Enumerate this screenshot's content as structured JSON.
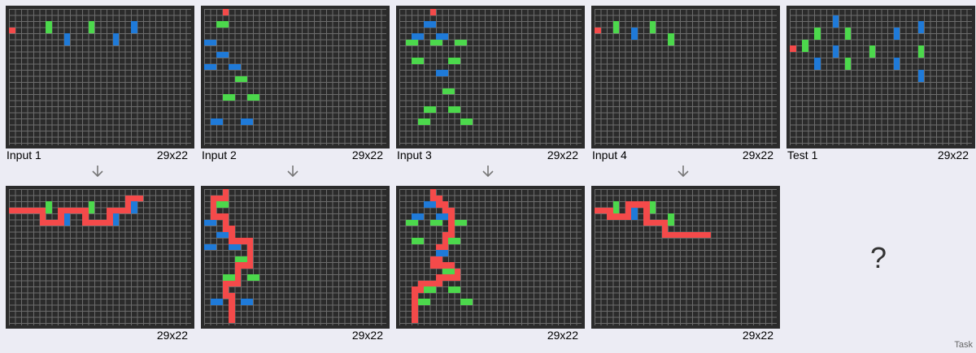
{
  "task_label": "Task",
  "unknown_label": "?",
  "colors": {
    "red": "#f44a4a",
    "green": "#4cd84c",
    "blue": "#1f7ad8",
    "bg": "#2b2b2b",
    "grid_line": "#6c6c6c"
  },
  "pairs": [
    {
      "label": "Input 1",
      "in_size": "29x22",
      "out_size": "29x22"
    },
    {
      "label": "Input 2",
      "in_size": "29x22",
      "out_size": "29x22"
    },
    {
      "label": "Input 3",
      "in_size": "29x22",
      "out_size": "29x22"
    },
    {
      "label": "Input 4",
      "in_size": "29x22",
      "out_size": "29x22"
    }
  ],
  "test": {
    "label": "Test 1",
    "size": "29x22"
  },
  "grids": {
    "in1": {
      "red": [
        [
          0,
          3
        ]
      ],
      "green": [
        [
          6,
          2
        ],
        [
          6,
          3
        ],
        [
          13,
          2
        ],
        [
          13,
          3
        ]
      ],
      "blue": [
        [
          9,
          4
        ],
        [
          9,
          5
        ],
        [
          17,
          4
        ],
        [
          17,
          5
        ],
        [
          20,
          2
        ],
        [
          20,
          3
        ]
      ]
    },
    "out1": {
      "red": [
        [
          0,
          3
        ],
        [
          1,
          3
        ],
        [
          2,
          3
        ],
        [
          3,
          3
        ],
        [
          4,
          3
        ],
        [
          5,
          3
        ],
        [
          5,
          4
        ],
        [
          5,
          5
        ],
        [
          6,
          5
        ],
        [
          7,
          5
        ],
        [
          8,
          5
        ],
        [
          8,
          4
        ],
        [
          8,
          3
        ],
        [
          9,
          3
        ],
        [
          10,
          3
        ],
        [
          11,
          3
        ],
        [
          12,
          3
        ],
        [
          12,
          4
        ],
        [
          12,
          5
        ],
        [
          13,
          5
        ],
        [
          14,
          5
        ],
        [
          15,
          5
        ],
        [
          16,
          5
        ],
        [
          16,
          4
        ],
        [
          16,
          3
        ],
        [
          17,
          3
        ],
        [
          18,
          3
        ],
        [
          19,
          3
        ],
        [
          19,
          2
        ],
        [
          19,
          1
        ],
        [
          20,
          1
        ],
        [
          21,
          1
        ]
      ],
      "green": [
        [
          6,
          2
        ],
        [
          6,
          3
        ],
        [
          13,
          2
        ],
        [
          13,
          3
        ]
      ],
      "blue": [
        [
          9,
          4
        ],
        [
          9,
          5
        ],
        [
          17,
          4
        ],
        [
          17,
          5
        ],
        [
          20,
          2
        ],
        [
          20,
          3
        ]
      ]
    },
    "in2": {
      "red": [
        [
          3,
          0
        ]
      ],
      "green": [
        [
          2,
          2
        ],
        [
          3,
          2
        ],
        [
          5,
          11
        ],
        [
          6,
          11
        ],
        [
          3,
          14
        ],
        [
          4,
          14
        ],
        [
          7,
          14
        ],
        [
          8,
          14
        ]
      ],
      "blue": [
        [
          0,
          5
        ],
        [
          1,
          5
        ],
        [
          2,
          7
        ],
        [
          3,
          7
        ],
        [
          0,
          9
        ],
        [
          1,
          9
        ],
        [
          4,
          9
        ],
        [
          5,
          9
        ],
        [
          1,
          18
        ],
        [
          2,
          18
        ],
        [
          6,
          18
        ],
        [
          7,
          18
        ]
      ]
    },
    "out2": {
      "red": [
        [
          3,
          0
        ],
        [
          3,
          1
        ],
        [
          2,
          1
        ],
        [
          1,
          1
        ],
        [
          1,
          2
        ],
        [
          1,
          3
        ],
        [
          1,
          4
        ],
        [
          2,
          4
        ],
        [
          3,
          4
        ],
        [
          3,
          5
        ],
        [
          3,
          6
        ],
        [
          4,
          6
        ],
        [
          4,
          7
        ],
        [
          4,
          8
        ],
        [
          5,
          8
        ],
        [
          6,
          8
        ],
        [
          7,
          8
        ],
        [
          7,
          9
        ],
        [
          7,
          10
        ],
        [
          7,
          11
        ],
        [
          7,
          12
        ],
        [
          6,
          12
        ],
        [
          5,
          12
        ],
        [
          5,
          13
        ],
        [
          5,
          14
        ],
        [
          5,
          15
        ],
        [
          4,
          15
        ],
        [
          3,
          15
        ],
        [
          3,
          16
        ],
        [
          3,
          17
        ],
        [
          4,
          17
        ],
        [
          4,
          18
        ],
        [
          4,
          19
        ],
        [
          4,
          20
        ],
        [
          4,
          21
        ]
      ],
      "green": [
        [
          2,
          2
        ],
        [
          3,
          2
        ],
        [
          5,
          11
        ],
        [
          6,
          11
        ],
        [
          3,
          14
        ],
        [
          4,
          14
        ],
        [
          7,
          14
        ],
        [
          8,
          14
        ]
      ],
      "blue": [
        [
          0,
          5
        ],
        [
          1,
          5
        ],
        [
          2,
          7
        ],
        [
          3,
          7
        ],
        [
          0,
          9
        ],
        [
          1,
          9
        ],
        [
          4,
          9
        ],
        [
          5,
          9
        ],
        [
          1,
          18
        ],
        [
          2,
          18
        ],
        [
          6,
          18
        ],
        [
          7,
          18
        ]
      ]
    },
    "in3": {
      "red": [
        [
          5,
          0
        ]
      ],
      "green": [
        [
          1,
          5
        ],
        [
          2,
          5
        ],
        [
          5,
          5
        ],
        [
          6,
          5
        ],
        [
          9,
          5
        ],
        [
          10,
          5
        ],
        [
          2,
          8
        ],
        [
          3,
          8
        ],
        [
          8,
          8
        ],
        [
          9,
          8
        ],
        [
          7,
          13
        ],
        [
          8,
          13
        ],
        [
          4,
          16
        ],
        [
          5,
          16
        ],
        [
          8,
          16
        ],
        [
          9,
          16
        ],
        [
          3,
          18
        ],
        [
          4,
          18
        ],
        [
          10,
          18
        ],
        [
          11,
          18
        ]
      ],
      "blue": [
        [
          4,
          2
        ],
        [
          5,
          2
        ],
        [
          2,
          4
        ],
        [
          3,
          4
        ],
        [
          6,
          4
        ],
        [
          7,
          4
        ],
        [
          6,
          10
        ],
        [
          7,
          10
        ]
      ]
    },
    "out3": {
      "red": [
        [
          5,
          0
        ],
        [
          5,
          1
        ],
        [
          6,
          1
        ],
        [
          6,
          2
        ],
        [
          7,
          2
        ],
        [
          7,
          3
        ],
        [
          8,
          3
        ],
        [
          8,
          4
        ],
        [
          8,
          5
        ],
        [
          8,
          6
        ],
        [
          8,
          7
        ],
        [
          7,
          7
        ],
        [
          7,
          8
        ],
        [
          7,
          9
        ],
        [
          6,
          9
        ],
        [
          6,
          10
        ],
        [
          6,
          11
        ],
        [
          5,
          11
        ],
        [
          5,
          12
        ],
        [
          6,
          12
        ],
        [
          7,
          12
        ],
        [
          8,
          12
        ],
        [
          8,
          13
        ],
        [
          9,
          13
        ],
        [
          9,
          14
        ],
        [
          8,
          14
        ],
        [
          7,
          14
        ],
        [
          6,
          14
        ],
        [
          6,
          15
        ],
        [
          5,
          15
        ],
        [
          4,
          15
        ],
        [
          3,
          15
        ],
        [
          3,
          16
        ],
        [
          2,
          16
        ],
        [
          2,
          17
        ],
        [
          2,
          18
        ],
        [
          2,
          19
        ],
        [
          2,
          20
        ],
        [
          2,
          21
        ]
      ],
      "green": [
        [
          1,
          5
        ],
        [
          2,
          5
        ],
        [
          5,
          5
        ],
        [
          6,
          5
        ],
        [
          9,
          5
        ],
        [
          10,
          5
        ],
        [
          2,
          8
        ],
        [
          3,
          8
        ],
        [
          8,
          8
        ],
        [
          9,
          8
        ],
        [
          7,
          13
        ],
        [
          8,
          13
        ],
        [
          4,
          16
        ],
        [
          5,
          16
        ],
        [
          8,
          16
        ],
        [
          9,
          16
        ],
        [
          3,
          18
        ],
        [
          4,
          18
        ],
        [
          10,
          18
        ],
        [
          11,
          18
        ]
      ],
      "blue": [
        [
          4,
          2
        ],
        [
          5,
          2
        ],
        [
          2,
          4
        ],
        [
          3,
          4
        ],
        [
          6,
          4
        ],
        [
          7,
          4
        ],
        [
          6,
          10
        ],
        [
          7,
          10
        ]
      ]
    },
    "in4": {
      "red": [
        [
          0,
          3
        ]
      ],
      "green": [
        [
          3,
          2
        ],
        [
          3,
          3
        ],
        [
          9,
          2
        ],
        [
          9,
          3
        ],
        [
          12,
          4
        ],
        [
          12,
          5
        ]
      ],
      "blue": [
        [
          6,
          3
        ],
        [
          6,
          4
        ]
      ]
    },
    "out4": {
      "red": [
        [
          0,
          3
        ],
        [
          1,
          3
        ],
        [
          2,
          3
        ],
        [
          2,
          4
        ],
        [
          3,
          4
        ],
        [
          4,
          4
        ],
        [
          5,
          4
        ],
        [
          5,
          3
        ],
        [
          5,
          2
        ],
        [
          6,
          2
        ],
        [
          7,
          2
        ],
        [
          8,
          2
        ],
        [
          8,
          3
        ],
        [
          8,
          4
        ],
        [
          8,
          5
        ],
        [
          9,
          5
        ],
        [
          10,
          5
        ],
        [
          11,
          5
        ],
        [
          11,
          6
        ],
        [
          11,
          7
        ],
        [
          12,
          7
        ],
        [
          13,
          7
        ],
        [
          14,
          7
        ],
        [
          15,
          7
        ],
        [
          16,
          7
        ],
        [
          17,
          7
        ],
        [
          18,
          7
        ]
      ],
      "green": [
        [
          3,
          2
        ],
        [
          3,
          3
        ],
        [
          9,
          2
        ],
        [
          9,
          3
        ],
        [
          12,
          4
        ],
        [
          12,
          5
        ]
      ],
      "blue": [
        [
          6,
          3
        ],
        [
          6,
          4
        ]
      ]
    },
    "test": {
      "red": [
        [
          0,
          6
        ]
      ],
      "green": [
        [
          2,
          5
        ],
        [
          2,
          6
        ],
        [
          4,
          3
        ],
        [
          4,
          4
        ],
        [
          9,
          3
        ],
        [
          9,
          4
        ],
        [
          9,
          8
        ],
        [
          9,
          9
        ],
        [
          13,
          6
        ],
        [
          13,
          7
        ],
        [
          21,
          6
        ],
        [
          21,
          7
        ]
      ],
      "blue": [
        [
          7,
          1
        ],
        [
          7,
          2
        ],
        [
          4,
          8
        ],
        [
          4,
          9
        ],
        [
          7,
          6
        ],
        [
          7,
          7
        ],
        [
          17,
          3
        ],
        [
          17,
          4
        ],
        [
          17,
          8
        ],
        [
          17,
          9
        ],
        [
          21,
          2
        ],
        [
          21,
          3
        ],
        [
          21,
          10
        ],
        [
          21,
          11
        ]
      ]
    }
  }
}
